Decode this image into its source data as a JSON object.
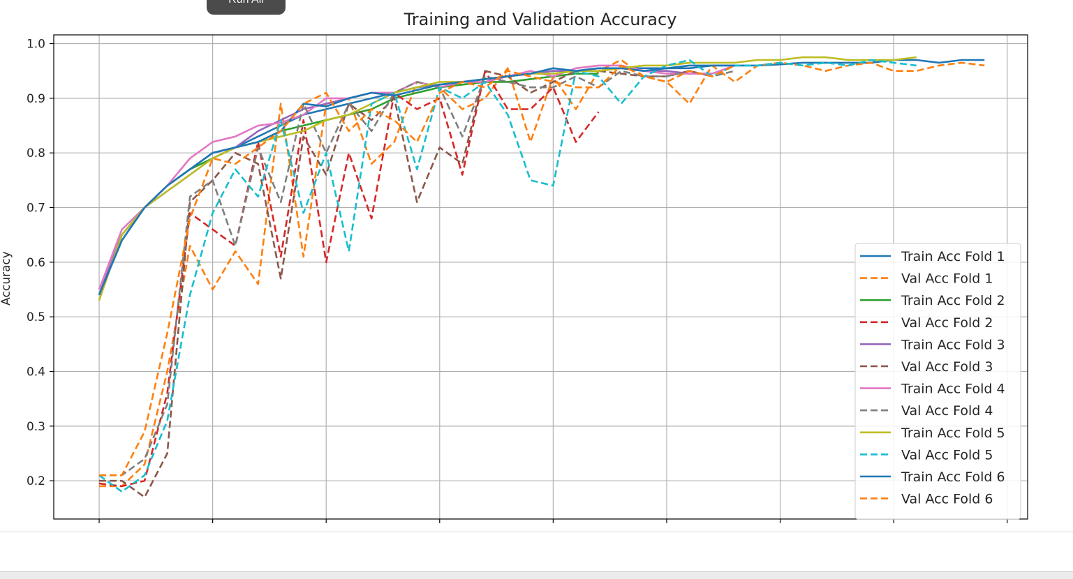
{
  "toolbar": {
    "run_all_label": "Run All"
  },
  "chart_data": {
    "type": "line",
    "title": "Training and Validation Accuracy",
    "xlabel": "",
    "ylabel": "Accuracy",
    "xlim": [
      -2,
      40.9
    ],
    "ylim": [
      0.13,
      1.016
    ],
    "xticks": [
      0,
      5,
      10,
      15,
      20,
      25,
      30,
      35,
      40
    ],
    "yticks": [
      0.2,
      0.3,
      0.4,
      0.5,
      0.6,
      0.7,
      0.8,
      0.9,
      1.0
    ],
    "ytick_labels": [
      "0.2",
      "0.3",
      "0.4",
      "0.5",
      "0.6",
      "0.7",
      "0.8",
      "0.9",
      "1.0"
    ],
    "grid": true,
    "legend_position": "lower-right",
    "series": [
      {
        "name": "Train Acc Fold 1",
        "color": "#1f77b4",
        "style": "solid",
        "values": [
          0.54,
          0.64,
          0.7,
          0.74,
          0.77,
          0.8,
          0.81,
          0.83,
          0.85,
          0.87,
          0.88,
          0.89,
          0.9,
          0.91,
          0.92,
          0.925,
          0.93,
          0.935,
          0.94,
          0.945,
          0.95,
          0.95,
          0.955,
          0.955,
          0.955,
          0.955,
          0.955,
          0.96,
          0.96,
          0.96,
          0.962,
          0.965,
          0.965,
          0.965,
          0.965,
          0.97,
          0.97,
          0.965,
          0.97,
          0.97
        ]
      },
      {
        "name": "Val Acc Fold 1",
        "color": "#ff7f0e",
        "style": "dashed",
        "values": [
          0.19,
          0.19,
          0.23,
          0.4,
          0.63,
          0.55,
          0.62,
          0.56,
          0.89,
          0.61,
          0.89,
          0.9,
          0.78,
          0.82,
          0.93,
          0.92,
          0.88,
          0.9,
          0.955,
          0.82,
          0.94,
          0.88,
          0.95,
          0.97,
          0.94,
          0.93,
          0.89,
          0.96,
          0.93,
          0.96,
          0.965,
          0.96,
          0.95,
          0.96,
          0.965,
          0.95,
          0.95,
          0.96,
          0.965,
          0.96
        ]
      },
      {
        "name": "Train Acc Fold 2",
        "color": "#2ca02c",
        "style": "solid",
        "values": [
          0.54,
          0.65,
          0.7,
          0.74,
          0.77,
          0.79,
          0.81,
          0.82,
          0.84,
          0.85,
          0.86,
          0.87,
          0.88,
          0.9,
          0.91,
          0.92,
          0.925,
          0.93,
          0.93,
          0.935,
          0.94,
          0.945,
          0.945
        ]
      },
      {
        "name": "Val Acc Fold 2",
        "color": "#d62728",
        "style": "dashed",
        "values": [
          0.195,
          0.19,
          0.2,
          0.36,
          0.69,
          0.66,
          0.63,
          0.82,
          0.61,
          0.86,
          0.6,
          0.8,
          0.68,
          0.91,
          0.88,
          0.9,
          0.76,
          0.95,
          0.88,
          0.88,
          0.92,
          0.82,
          0.875
        ]
      },
      {
        "name": "Train Acc Fold 3",
        "color": "#9467bd",
        "style": "solid",
        "values": [
          0.54,
          0.65,
          0.7,
          0.73,
          0.76,
          0.79,
          0.81,
          0.84,
          0.86,
          0.88,
          0.89,
          0.9,
          0.91,
          0.91,
          0.92,
          0.925,
          0.93,
          0.935,
          0.94,
          0.945,
          0.95,
          0.95,
          0.955,
          0.955,
          0.95,
          0.95,
          0.945,
          0.945
        ]
      },
      {
        "name": "Val Acc Fold 3",
        "color": "#8c564b",
        "style": "dashed",
        "values": [
          0.2,
          0.2,
          0.17,
          0.25,
          0.71,
          0.75,
          0.8,
          0.78,
          0.57,
          0.83,
          0.76,
          0.89,
          0.86,
          0.9,
          0.71,
          0.81,
          0.78,
          0.95,
          0.94,
          0.91,
          0.93,
          0.95,
          0.95,
          0.945,
          0.94,
          0.94,
          0.95,
          0.94
        ]
      },
      {
        "name": "Train Acc Fold 4",
        "color": "#e377c2",
        "style": "solid",
        "values": [
          0.55,
          0.66,
          0.7,
          0.74,
          0.79,
          0.82,
          0.83,
          0.85,
          0.855,
          0.87,
          0.9,
          0.9,
          0.91,
          0.91,
          0.93,
          0.92,
          0.93,
          0.93,
          0.94,
          0.95,
          0.94,
          0.955,
          0.96,
          0.96,
          0.95,
          0.945,
          0.945,
          0.945,
          0.96
        ]
      },
      {
        "name": "Val Acc Fold 4",
        "color": "#7f7f7f",
        "style": "dashed",
        "values": [
          0.21,
          0.21,
          0.24,
          0.34,
          0.72,
          0.75,
          0.63,
          0.81,
          0.71,
          0.89,
          0.8,
          0.89,
          0.84,
          0.91,
          0.93,
          0.92,
          0.83,
          0.94,
          0.93,
          0.92,
          0.92,
          0.94,
          0.92,
          0.95,
          0.94,
          0.94,
          0.95,
          0.94,
          0.95
        ]
      },
      {
        "name": "Train Acc Fold 5",
        "color": "#bcbd22",
        "style": "solid",
        "values": [
          0.53,
          0.65,
          0.7,
          0.73,
          0.76,
          0.79,
          0.81,
          0.82,
          0.83,
          0.84,
          0.86,
          0.87,
          0.89,
          0.91,
          0.92,
          0.93,
          0.93,
          0.935,
          0.94,
          0.945,
          0.945,
          0.95,
          0.95,
          0.955,
          0.96,
          0.96,
          0.965,
          0.965,
          0.965,
          0.97,
          0.97,
          0.975,
          0.975,
          0.97,
          0.97,
          0.97,
          0.975
        ]
      },
      {
        "name": "Val Acc Fold 5",
        "color": "#17becf",
        "style": "dashed",
        "values": [
          0.21,
          0.18,
          0.21,
          0.31,
          0.54,
          0.69,
          0.77,
          0.72,
          0.86,
          0.69,
          0.8,
          0.62,
          0.89,
          0.91,
          0.77,
          0.92,
          0.9,
          0.93,
          0.87,
          0.75,
          0.74,
          0.95,
          0.94,
          0.89,
          0.94,
          0.96,
          0.97,
          0.94,
          0.96,
          0.96,
          0.965,
          0.96,
          0.965,
          0.96,
          0.97,
          0.965,
          0.96
        ]
      },
      {
        "name": "Train Acc Fold 6",
        "color": "#1f77b4",
        "style": "solid",
        "values": [
          0.54,
          0.64,
          0.7,
          0.74,
          0.77,
          0.8,
          0.81,
          0.82,
          0.84,
          0.89,
          0.885,
          0.9,
          0.91,
          0.905,
          0.915,
          0.925,
          0.93,
          0.935,
          0.94,
          0.945,
          0.955,
          0.95,
          0.955,
          0.955,
          0.95,
          0.955,
          0.96,
          0.96,
          0.96
        ]
      },
      {
        "name": "Val Acc Fold 6",
        "color": "#ff7f0e",
        "style": "dashed",
        "values": [
          0.21,
          0.21,
          0.29,
          0.47,
          0.68,
          0.79,
          0.78,
          0.81,
          0.84,
          0.89,
          0.91,
          0.84,
          0.88,
          0.86,
          0.82,
          0.91,
          0.93,
          0.92,
          0.95,
          0.94,
          0.93,
          0.92,
          0.92,
          0.96,
          0.94,
          0.93,
          0.95,
          0.94,
          0.96
        ]
      }
    ]
  }
}
